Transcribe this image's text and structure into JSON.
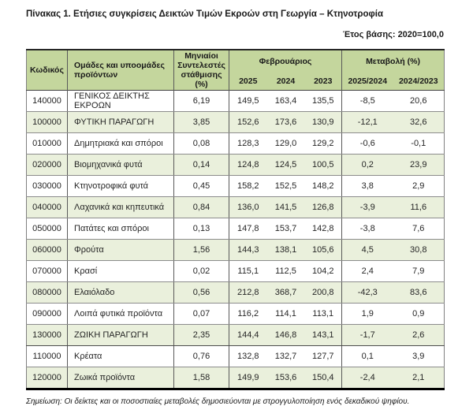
{
  "page": {
    "title": "Πίνακας 1. Ετήσιες συγκρίσεις Δεικτών Τιμών Εκροών στη Γεωργία – Κτηνοτροφία",
    "base_year_note": "Έτος βάσης: 2020=100,0",
    "footnote": "Σημείωση: Οι δείκτες και οι ποσοστιαίες μεταβολές δημοσιεύονται με στρογγυλοποίηση ενός δεκαδικού ψηφίου."
  },
  "table": {
    "colors": {
      "header_bg": "#c4d69d",
      "alt_row_bg": "#eaf0dc",
      "text": "#262626"
    },
    "headers": {
      "code": "Κωδικός",
      "groups": "Ομάδες και υποομάδες προϊόντων",
      "weights": "Μηνιαίοι Συντελεστές στάθμισης (%)",
      "month_group": "Φεβρουάριος",
      "year_2025": "2025",
      "year_2024": "2024",
      "year_2023": "2023",
      "change_group": "Μεταβολή (%)",
      "change_2025_2024": "2025/2024",
      "change_2024_2023": "2024/2023"
    },
    "rows": [
      {
        "code": "140000",
        "name": "ΓΕΝΙΚΟΣ ΔΕΙΚΤΗΣ ΕΚΡΟΩΝ",
        "weight": "6,19",
        "idx2025": "149,5",
        "idx2024": "163,4",
        "idx2023": "135,5",
        "chg2524": "-8,5",
        "chg2423": "20,6"
      },
      {
        "code": "100000",
        "name": "ΦΥΤΙΚΗ ΠΑΡΑΓΩΓΗ",
        "weight": "3,85",
        "idx2025": "152,6",
        "idx2024": "173,6",
        "idx2023": "130,9",
        "chg2524": "-12,1",
        "chg2423": "32,6"
      },
      {
        "code": "010000",
        "name": "Δημητριακά και σπόροι",
        "weight": "0,08",
        "idx2025": "128,3",
        "idx2024": "129,0",
        "idx2023": "129,2",
        "chg2524": "-0,6",
        "chg2423": "-0,1"
      },
      {
        "code": "020000",
        "name": "Βιομηχανικά φυτά",
        "weight": "0,14",
        "idx2025": "124,8",
        "idx2024": "124,5",
        "idx2023": "100,5",
        "chg2524": "0,2",
        "chg2423": "23,9"
      },
      {
        "code": "030000",
        "name": "Κτηνοτροφικά φυτά",
        "weight": "0,45",
        "idx2025": "158,2",
        "idx2024": "152,5",
        "idx2023": "148,2",
        "chg2524": "3,8",
        "chg2423": "2,9"
      },
      {
        "code": "040000",
        "name": "Λαχανικά και κηπευτικά",
        "weight": "0,84",
        "idx2025": "136,0",
        "idx2024": "141,5",
        "idx2023": "126,8",
        "chg2524": "-3,9",
        "chg2423": "11,6"
      },
      {
        "code": "050000",
        "name": "Πατάτες και σπόροι",
        "weight": "0,13",
        "idx2025": "147,8",
        "idx2024": "153,7",
        "idx2023": "142,8",
        "chg2524": "-3,8",
        "chg2423": "7,6"
      },
      {
        "code": "060000",
        "name": "Φρούτα",
        "weight": "1,56",
        "idx2025": "144,3",
        "idx2024": "138,1",
        "idx2023": "105,6",
        "chg2524": "4,5",
        "chg2423": "30,8"
      },
      {
        "code": "070000",
        "name": "Κρασί",
        "weight": "0,02",
        "idx2025": "115,1",
        "idx2024": "112,5",
        "idx2023": "104,2",
        "chg2524": "2,4",
        "chg2423": "7,9"
      },
      {
        "code": "080000",
        "name": "Ελαιόλαδο",
        "weight": "0,56",
        "idx2025": "212,8",
        "idx2024": "368,7",
        "idx2023": "200,8",
        "chg2524": "-42,3",
        "chg2423": "83,6"
      },
      {
        "code": "090000",
        "name": "Λοιπά φυτικά προϊόντα",
        "weight": "0,07",
        "idx2025": "116,2",
        "idx2024": "114,1",
        "idx2023": "113,1",
        "chg2524": "1,9",
        "chg2423": "0,9"
      },
      {
        "code": "130000",
        "name": "ΖΩΙΚΗ ΠΑΡΑΓΩΓΗ",
        "weight": "2,35",
        "idx2025": "144,4",
        "idx2024": "146,8",
        "idx2023": "143,1",
        "chg2524": "-1,7",
        "chg2423": "2,6",
        "section": true
      },
      {
        "code": "110000",
        "name": "Κρέατα",
        "weight": "0,76",
        "idx2025": "132,8",
        "idx2024": "132,7",
        "idx2023": "127,7",
        "chg2524": "0,1",
        "chg2423": "3,9"
      },
      {
        "code": "120000",
        "name": "Ζωικά προϊόντα",
        "weight": "1,58",
        "idx2025": "149,9",
        "idx2024": "153,6",
        "idx2023": "150,4",
        "chg2524": "-2,4",
        "chg2423": "2,1"
      }
    ]
  }
}
